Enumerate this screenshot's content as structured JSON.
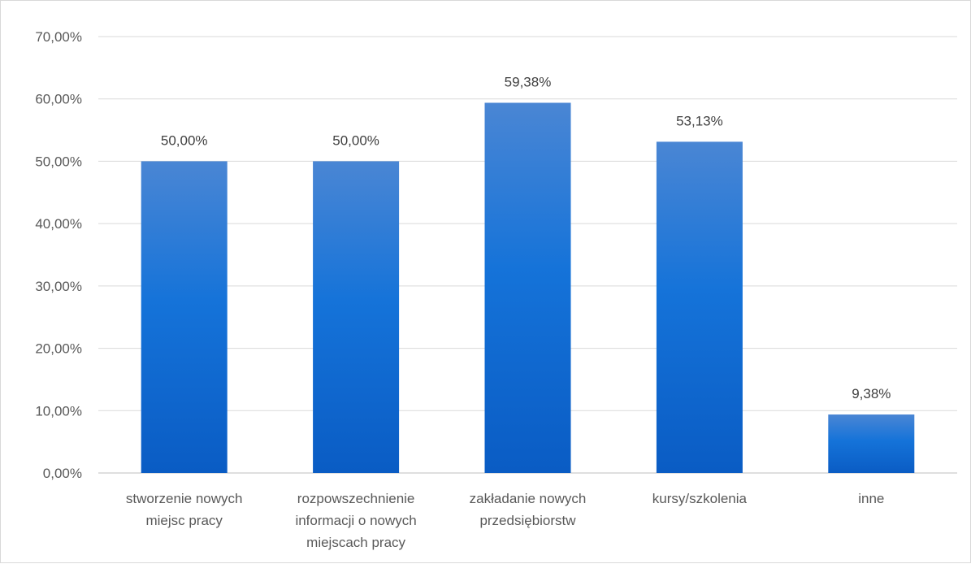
{
  "chart_data": {
    "type": "bar",
    "title": "",
    "xlabel": "",
    "ylabel": "",
    "categories": [
      [
        "stworzenie nowych",
        "miejsc pracy"
      ],
      [
        "rozpowszechnienie",
        "informacji o nowych",
        "miejscach pracy"
      ],
      [
        "zakładanie nowych",
        "przedsiębiorstw"
      ],
      [
        "kursy/szkolenia"
      ],
      [
        "inne"
      ]
    ],
    "values": [
      50.0,
      50.0,
      59.38,
      53.13,
      9.38
    ],
    "value_labels": [
      "50,00%",
      "50,00%",
      "59,38%",
      "53,13%",
      "9,38%"
    ],
    "ylim": [
      0,
      70
    ],
    "yticks": [
      0,
      10,
      20,
      30,
      40,
      50,
      60,
      70
    ],
    "ytick_labels": [
      "0,00%",
      "10,00%",
      "20,00%",
      "30,00%",
      "40,00%",
      "50,00%",
      "60,00%",
      "70,00%"
    ],
    "grid": true,
    "legend": "none",
    "colors": {
      "bar_top": "#4a86d4",
      "bar_bottom": "#0a5cc4"
    }
  }
}
